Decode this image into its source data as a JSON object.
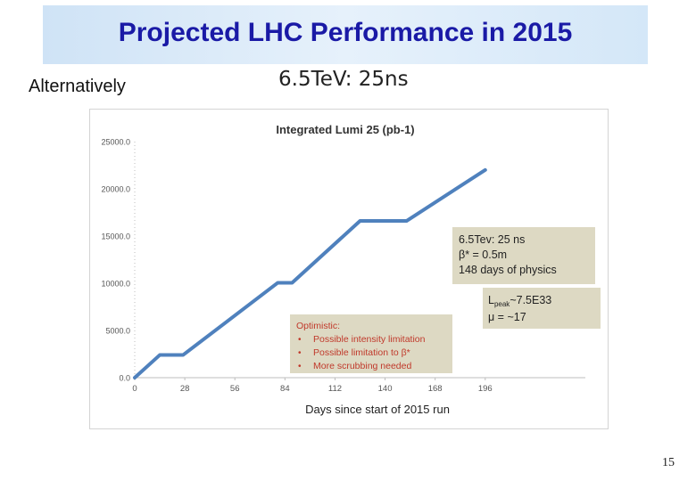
{
  "slide": {
    "title": "Projected LHC Performance in 2015",
    "subtitle": "Alternatively",
    "scenario": "6.5TeV: 25ns",
    "page_number": "15"
  },
  "chart_data": {
    "type": "line",
    "title": "Integrated Lumi 25 (pb-1)",
    "xlabel": "Days since start of 2015 run",
    "ylabel": "",
    "xlim": [
      0,
      252
    ],
    "ylim": [
      0,
      25000
    ],
    "x_ticks": [
      0,
      28,
      56,
      84,
      112,
      140,
      168,
      196
    ],
    "y_ticks": [
      0,
      5000,
      10000,
      15000,
      20000,
      25000
    ],
    "y_tick_labels": [
      "0.0",
      "5000.0",
      "10000.0",
      "15000.0",
      "20000.0",
      "25000.0"
    ],
    "grid": false,
    "series": [
      {
        "name": "",
        "color": "#4f81bd",
        "x": [
          0,
          14,
          27,
          80,
          88,
          126,
          152,
          196
        ],
        "y": [
          0,
          2400,
          2400,
          10050,
          10050,
          16600,
          16600,
          22000
        ]
      }
    ],
    "annotations": [
      {
        "id": "box1",
        "color": "#ddd9c3",
        "lines": [
          "6.5Tev: 25 ns",
          "β* = 0.5m",
          "148 days of physics"
        ]
      },
      {
        "id": "box2",
        "color": "#ddd9c3",
        "lines": [
          "L",
          "peak",
          "~7.5E33",
          "μ = ~17"
        ]
      },
      {
        "id": "box3",
        "color": "#ddd9c3",
        "title": "Optimistic:",
        "bullets": [
          "Possible intensity limitation",
          "Possible limitation to β*",
          "More scrubbing needed"
        ],
        "title_color": "#c0392b",
        "bullet_color": "#c0392b"
      }
    ]
  }
}
